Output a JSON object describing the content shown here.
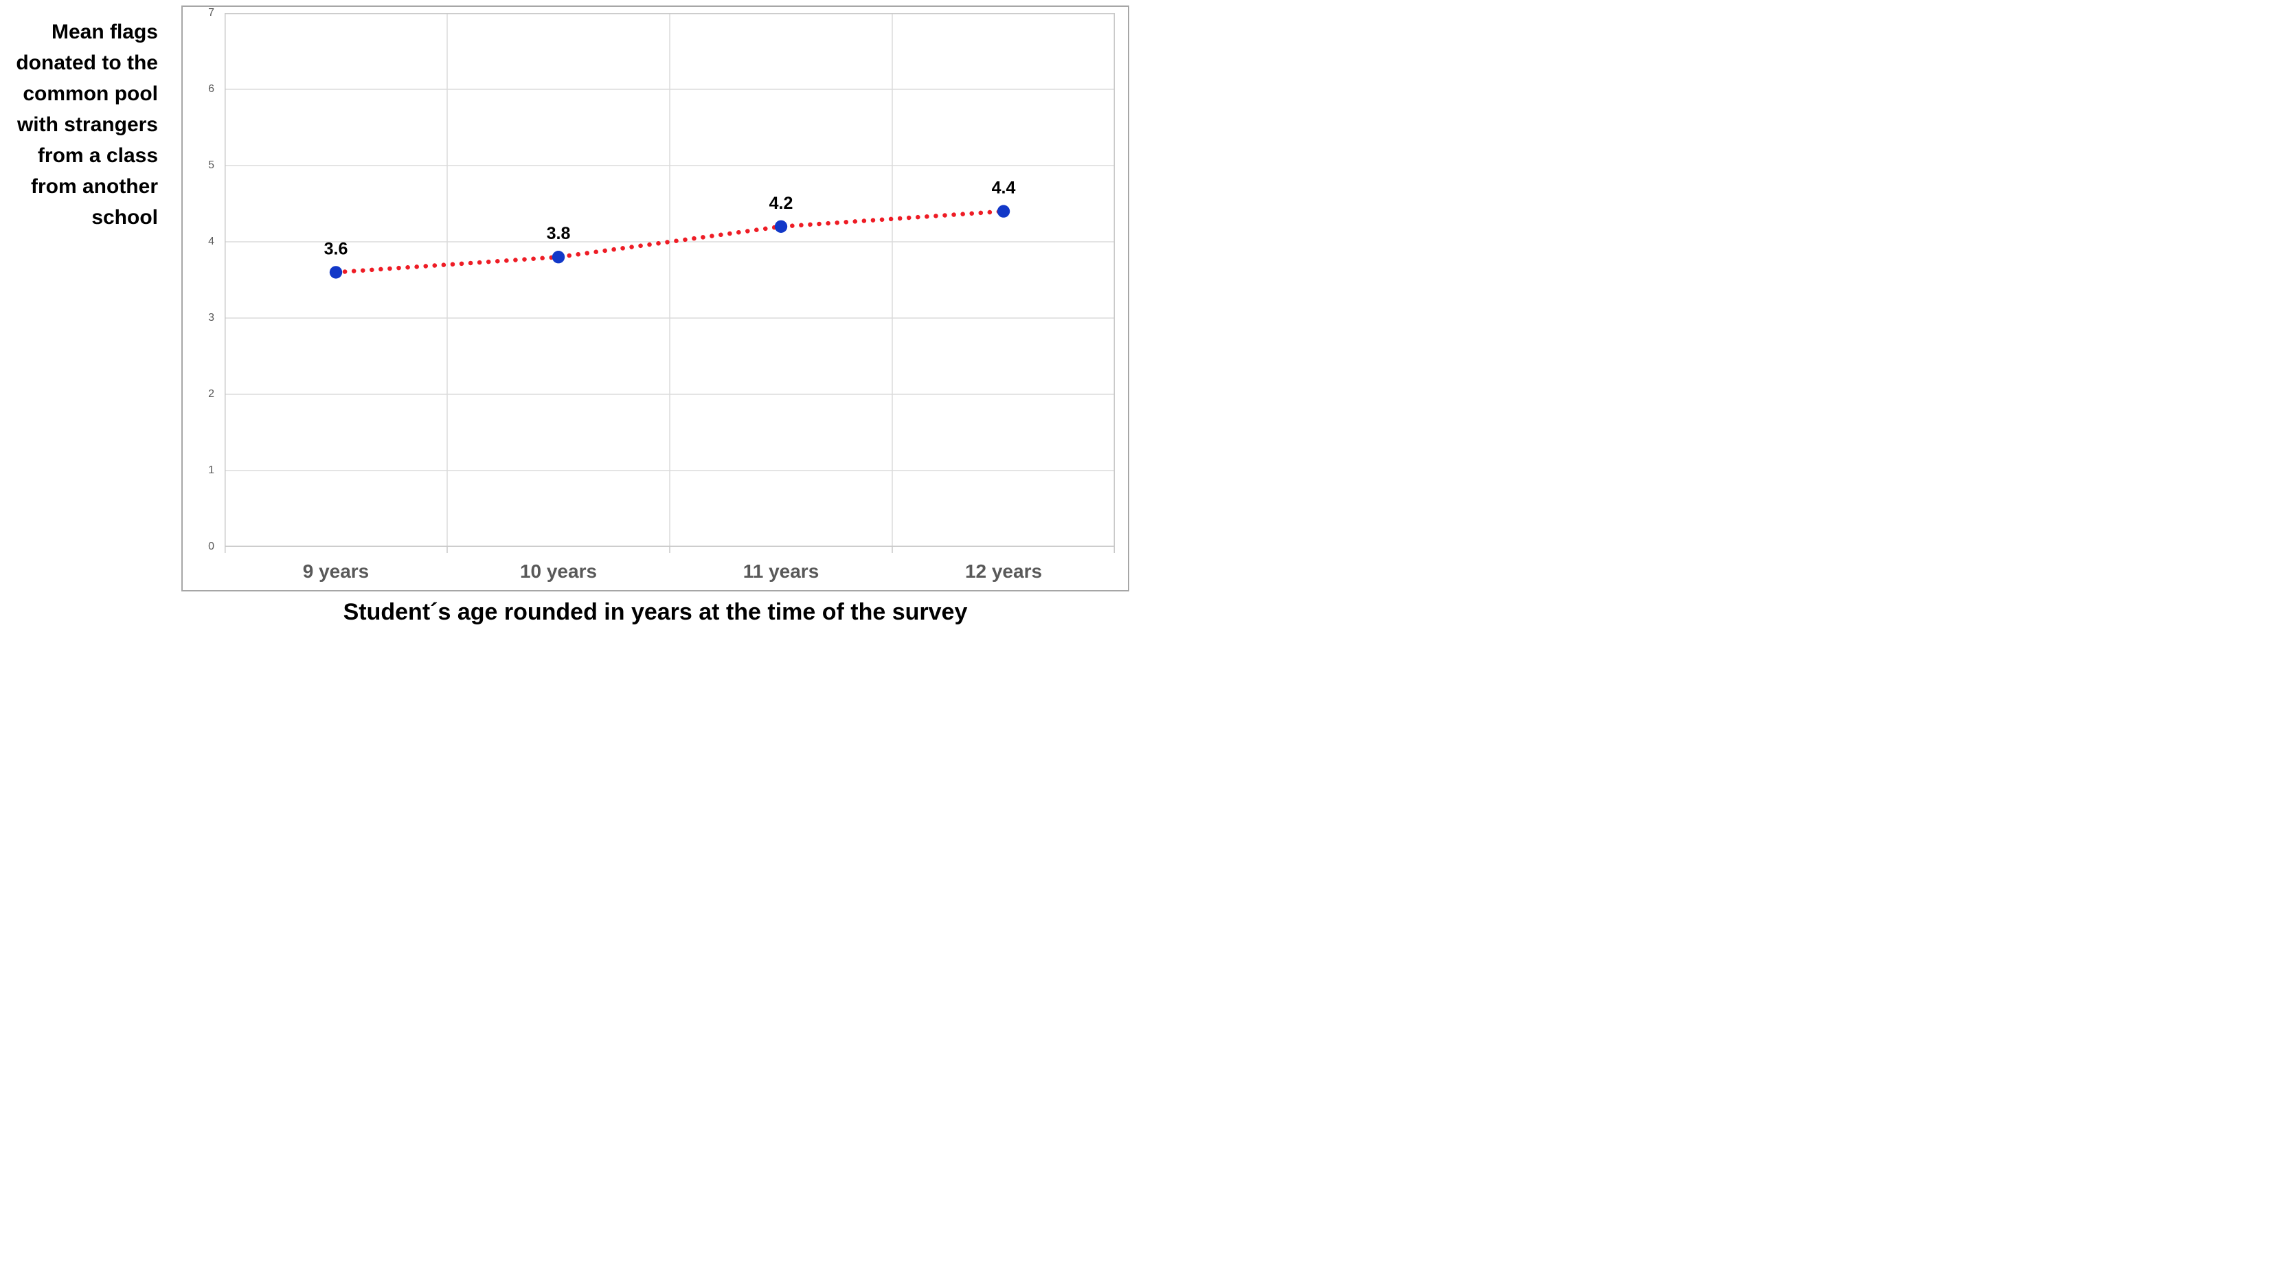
{
  "chart_data": {
    "type": "line",
    "categories": [
      "9 years",
      "10 years",
      "11 years",
      "12 years"
    ],
    "values": [
      3.6,
      3.8,
      4.2,
      4.4
    ],
    "data_labels": [
      "3.6",
      "3.8",
      "4.2",
      "4.4"
    ],
    "xlabel": "Student´s age rounded in years at the time of the survey",
    "ylabel": "Mean flags donated to the common pool with strangers from a class from another school",
    "ylim": [
      0,
      7
    ],
    "y_ticks": [
      "0",
      "1",
      "2",
      "3",
      "4",
      "5",
      "6",
      "7"
    ],
    "grid": true,
    "legend_position": "none",
    "line_style": "dotted",
    "marker_style": "filled-circle",
    "colors": {
      "marker": "#1238c8",
      "trend_line": "#ee1c25",
      "gridline": "#dbdbdb",
      "axis_line": "#c9c9c9",
      "frame_border": "#a6a6a6",
      "tick_label": "#595959",
      "data_label": "#000000",
      "background": "#ffffff"
    }
  }
}
